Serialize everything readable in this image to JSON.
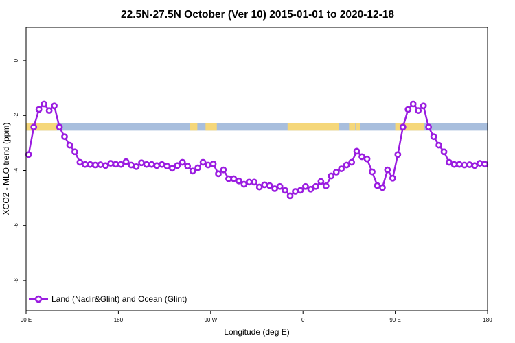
{
  "chart_data": {
    "type": "line",
    "title": "22.5N-27.5N October (Ver 10)   2015-01-01 to 2020-12-18",
    "xlabel": "Longitude (deg E)",
    "ylabel": "XCO2 - MLO trend (ppm)",
    "x_ticks": [
      {
        "value": 90,
        "label": "90 E"
      },
      {
        "value": 180,
        "label": "180"
      },
      {
        "value": 270,
        "label": "90 W"
      },
      {
        "value": 360,
        "label": "0"
      },
      {
        "value": 450,
        "label": "90 E"
      },
      {
        "value": 540,
        "label": "180"
      }
    ],
    "y_ticks": [
      {
        "value": 0,
        "label": "0"
      },
      {
        "value": -2,
        "label": "-2"
      },
      {
        "value": -4,
        "label": "-4"
      },
      {
        "value": -6,
        "label": "-6"
      },
      {
        "value": -8,
        "label": "-8"
      }
    ],
    "xlim": [
      90,
      540
    ],
    "ylim": [
      -9.1,
      1.2
    ],
    "legend": {
      "position": "bottom-left"
    },
    "colors": {
      "series": "#9a1ce0",
      "land": "#f5d77a",
      "ocean": "#a8bedd"
    },
    "land_ocean_band": {
      "y_range": [
        -2.55,
        -2.28
      ],
      "land_segments": [
        [
          90,
          120
        ],
        [
          250,
          257
        ],
        [
          265,
          276
        ],
        [
          345,
          395
        ],
        [
          405,
          411
        ],
        [
          412,
          416
        ],
        [
          450,
          478
        ]
      ]
    },
    "series": [
      {
        "name": "Land (Nadir&Glint) and Ocean (Glint)",
        "x": [
          92.5,
          97.5,
          102.5,
          107.5,
          112.5,
          117.5,
          122.5,
          127.5,
          132.5,
          137.5,
          142.5,
          147.5,
          152.5,
          157.5,
          162.5,
          167.5,
          172.5,
          177.5,
          182.5,
          187.5,
          192.5,
          197.5,
          202.5,
          207.5,
          212.5,
          217.5,
          222.5,
          227.5,
          232.5,
          237.5,
          242.5,
          247.5,
          252.5,
          257.5,
          262.5,
          267.5,
          272.5,
          277.5,
          282.5,
          287.5,
          292.5,
          297.5,
          302.5,
          307.5,
          312.5,
          317.5,
          322.5,
          327.5,
          332.5,
          337.5,
          342.5,
          347.5,
          352.5,
          357.5,
          362.5,
          367.5,
          372.5,
          377.5,
          382.5,
          387.5,
          392.5,
          397.5,
          402.5,
          407.5,
          412.5,
          417.5,
          422.5,
          427.5,
          432.5,
          437.5,
          442.5,
          447.5,
          452.5,
          457.5,
          462.5,
          467.5,
          472.5,
          477.5,
          482.5,
          487.5,
          492.5,
          497.5,
          502.5,
          507.5,
          512.5,
          517.5,
          522.5,
          527.5,
          532.5,
          537.5
        ],
        "y": [
          -3.42,
          -2.42,
          -1.78,
          -1.58,
          -1.82,
          -1.65,
          -2.42,
          -2.77,
          -3.08,
          -3.32,
          -3.7,
          -3.78,
          -3.78,
          -3.8,
          -3.79,
          -3.82,
          -3.74,
          -3.77,
          -3.78,
          -3.68,
          -3.8,
          -3.86,
          -3.72,
          -3.78,
          -3.78,
          -3.82,
          -3.78,
          -3.84,
          -3.92,
          -3.82,
          -3.7,
          -3.84,
          -4.02,
          -3.9,
          -3.7,
          -3.8,
          -3.76,
          -4.12,
          -3.98,
          -4.3,
          -4.3,
          -4.38,
          -4.5,
          -4.42,
          -4.42,
          -4.6,
          -4.52,
          -4.55,
          -4.66,
          -4.58,
          -4.72,
          -4.92,
          -4.76,
          -4.72,
          -4.58,
          -4.68,
          -4.58,
          -4.4,
          -4.56,
          -4.2,
          -4.06,
          -3.94,
          -3.8,
          -3.7,
          -3.3,
          -3.5,
          -3.58,
          -4.05,
          -4.55,
          -4.62,
          -3.98,
          -4.28,
          -3.42,
          -2.42,
          -1.78,
          -1.58,
          -1.82,
          -1.65,
          -2.42,
          -2.77,
          -3.08,
          -3.32,
          -3.7,
          -3.78,
          -3.78,
          -3.8,
          -3.79,
          -3.82,
          -3.74,
          -3.77
        ]
      }
    ]
  }
}
